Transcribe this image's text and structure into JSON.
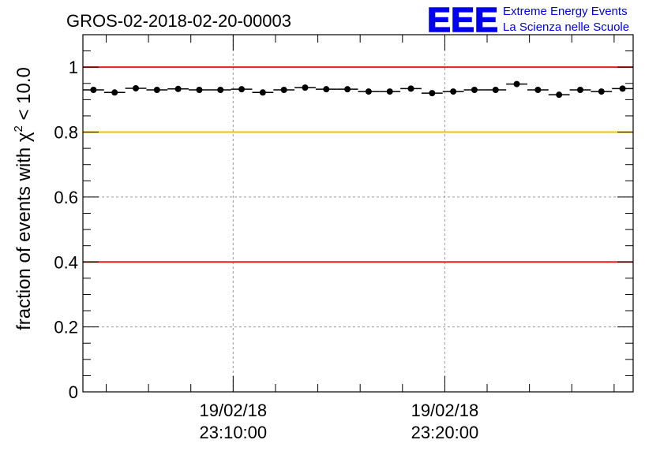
{
  "chart_data": {
    "type": "scatter",
    "title": "GROS-02-2018-02-20-00003",
    "ylabel_prefix": "fraction of events with ",
    "ylabel_symbol": "χ",
    "ylabel_sup": "2",
    "ylabel_suffix": " < 10.0",
    "xlabel": "",
    "ylim": [
      0,
      1.1
    ],
    "yticks": [
      0,
      0.2,
      0.4,
      0.6,
      0.8,
      1
    ],
    "ytick_labels": [
      "0",
      "0.2",
      "0.4",
      "0.6",
      "0.8",
      "1"
    ],
    "xlim_minutes": [
      0,
      26
    ],
    "xticks": [
      {
        "minute": 7.1,
        "date": "19/02/18",
        "time": "23:10:00"
      },
      {
        "minute": 17.1,
        "date": "19/02/18",
        "time": "23:20:00"
      }
    ],
    "grid": true,
    "reference_lines": [
      {
        "y": 1.0,
        "color": "#e8201a"
      },
      {
        "y": 0.8,
        "color": "#f5c000"
      },
      {
        "y": 0.4,
        "color": "#e8201a"
      }
    ],
    "series": [
      {
        "color": "#000000",
        "bin_width_minutes": 1,
        "x_minutes": [
          0.5,
          1.5,
          2.5,
          3.5,
          4.5,
          5.5,
          6.5,
          7.5,
          8.5,
          9.5,
          10.5,
          11.5,
          12.5,
          13.5,
          14.5,
          15.5,
          16.5,
          17.5,
          18.5,
          19.5,
          20.5,
          21.5,
          22.5,
          23.5,
          24.5,
          25.5
        ],
        "values": [
          0.93,
          0.922,
          0.935,
          0.93,
          0.933,
          0.93,
          0.93,
          0.932,
          0.922,
          0.93,
          0.937,
          0.932,
          0.932,
          0.925,
          0.925,
          0.934,
          0.92,
          0.925,
          0.93,
          0.93,
          0.948,
          0.93,
          0.915,
          0.93,
          0.925,
          0.934
        ]
      }
    ]
  },
  "logo": {
    "mark": "EEE",
    "line1": "Extreme Energy Events",
    "line2": "La Scienza nelle Scuole",
    "color": "#0000ee"
  }
}
